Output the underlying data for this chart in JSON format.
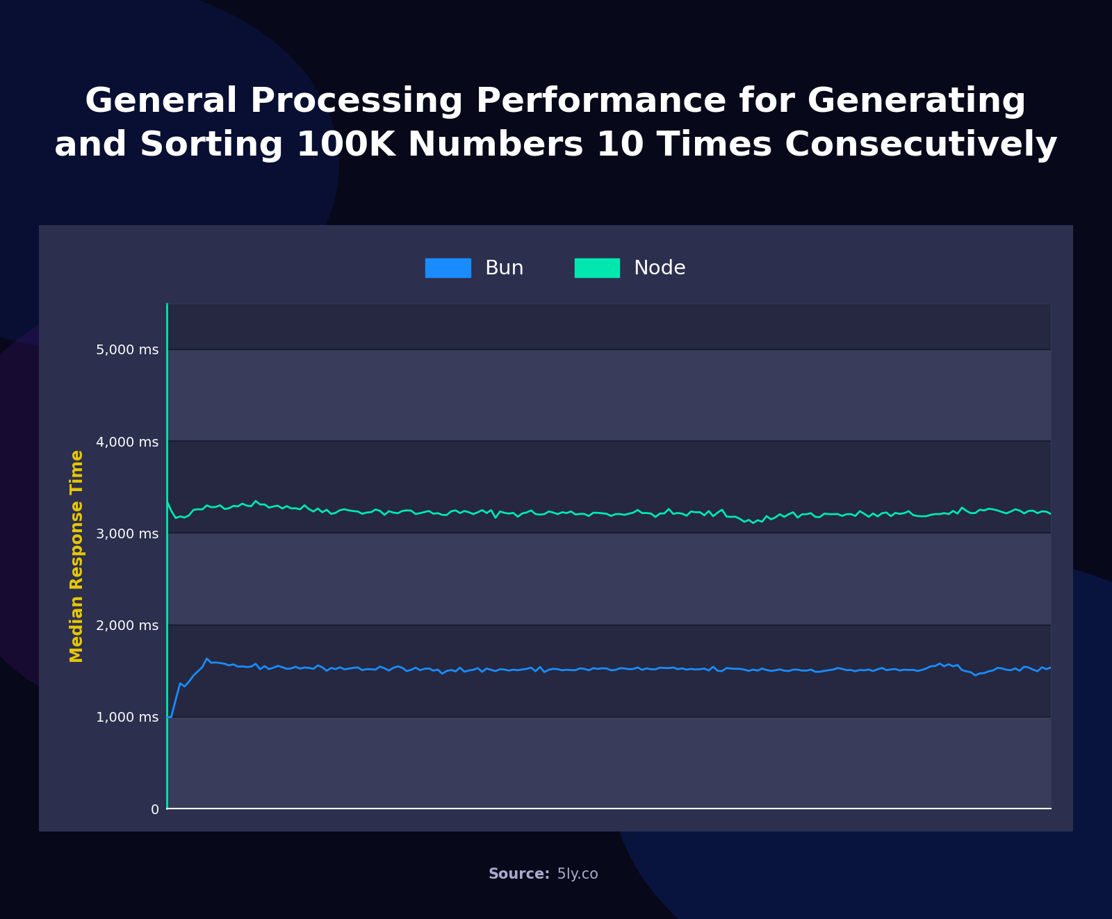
{
  "title_line1": "General Processing Performance for Generating",
  "title_line2": "and Sorting 100K Numbers 10 Times Consecutively",
  "title_color": "#ffffff",
  "title_fontsize": 36,
  "ylabel": "Median Response Time",
  "ylabel_color": "#e8c800",
  "ylabel_fontsize": 17,
  "ytick_labels": [
    "0",
    "1,000 ms",
    "2,000 ms",
    "3,000 ms",
    "4,000 ms",
    "5,000 ms"
  ],
  "ytick_values": [
    0,
    1000,
    2000,
    3000,
    4000,
    5000
  ],
  "ytick_color": "#ffffff",
  "ytick_fontsize": 14,
  "ylim_max": 5500,
  "legend_bun_label": "Bun",
  "legend_node_label": "Node",
  "bun_color": "#1a8cff",
  "node_color": "#00e8b0",
  "source_bold": "Source:",
  "source_normal": " 5ly.co",
  "source_color": "#aaaacc",
  "source_fontsize": 15,
  "card_color": "#2c2f4e",
  "plot_bg_band1": "#393c5a",
  "plot_bg_band2": "#252840",
  "grid_line_color": "#1a1c30",
  "num_points": 200
}
